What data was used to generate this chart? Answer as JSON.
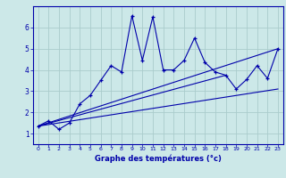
{
  "title": "",
  "xlabel": "Graphe des températures (°c)",
  "ylabel": "",
  "bg_color": "#cce8e8",
  "line_color": "#0000aa",
  "grid_color": "#aacccc",
  "xlim": [
    -0.5,
    23.5
  ],
  "ylim": [
    0.5,
    7.0
  ],
  "xticks": [
    0,
    1,
    2,
    3,
    4,
    5,
    6,
    7,
    8,
    9,
    10,
    11,
    12,
    13,
    14,
    15,
    16,
    17,
    18,
    19,
    20,
    21,
    22,
    23
  ],
  "yticks": [
    1,
    2,
    3,
    4,
    5,
    6
  ],
  "main_series": {
    "x": [
      0,
      1,
      2,
      3,
      4,
      5,
      6,
      7,
      8,
      9,
      10,
      11,
      12,
      13,
      14,
      15,
      16,
      17,
      18,
      19,
      20,
      21,
      22,
      23
    ],
    "y": [
      1.35,
      1.6,
      1.2,
      1.5,
      2.4,
      2.8,
      3.5,
      4.2,
      3.9,
      6.55,
      4.45,
      6.5,
      4.0,
      4.0,
      4.45,
      5.5,
      4.35,
      3.9,
      3.75,
      3.1,
      3.55,
      4.2,
      3.6,
      5.0
    ]
  },
  "line2": {
    "x": [
      0,
      23
    ],
    "y": [
      1.35,
      3.1
    ]
  },
  "line3": {
    "x": [
      0,
      18
    ],
    "y": [
      1.35,
      3.75
    ]
  },
  "line4": {
    "x": [
      0,
      23
    ],
    "y": [
      1.35,
      5.0
    ]
  }
}
